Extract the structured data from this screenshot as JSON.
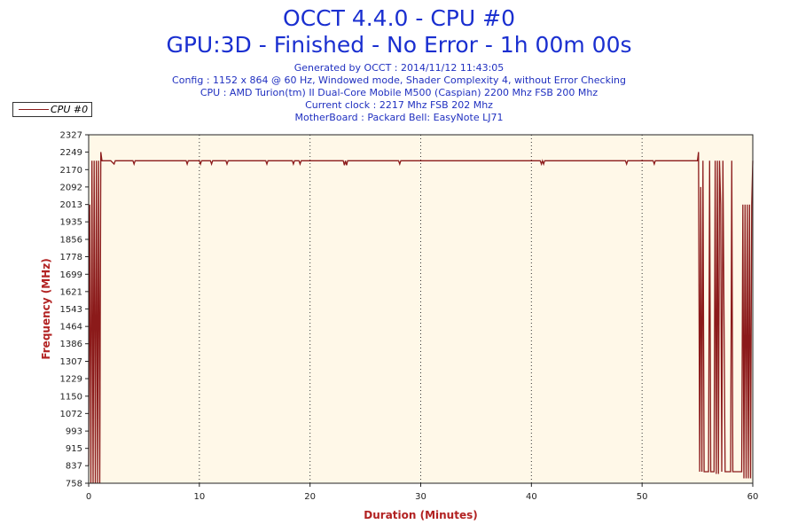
{
  "header": {
    "title_line1": "OCCT 4.4.0 - CPU #0",
    "title_line2": "GPU:3D - Finished - No Error - 1h 00m 00s",
    "info": [
      "Generated by OCCT : 2014/11/12 11:43:05",
      "Config : 1152 x 864 @ 60 Hz, Windowed mode, Shader Complexity 4, without Error Checking",
      "CPU : AMD Turion(tm) II Dual-Core Mobile M500 (Caspian) 2200 Mhz FSB 200 Mhz",
      "Current clock : 2217 Mhz FSB 202 Mhz",
      "MotherBoard : Packard Bell: EasyNote LJ71"
    ]
  },
  "colors": {
    "series": "#8b1a1a",
    "plot_background": "#fff8e8",
    "title": "#1a2fd0",
    "axis_title": "#b22222"
  },
  "chart_data": {
    "type": "line",
    "xlabel": "Duration (Minutes)",
    "ylabel": "Frequency (MHz)",
    "xlim": [
      0,
      60
    ],
    "ylim": [
      758,
      2327
    ],
    "x_ticks": [
      0,
      10,
      20,
      30,
      40,
      50,
      60
    ],
    "y_ticks": [
      758,
      837,
      915,
      993,
      1072,
      1150,
      1229,
      1307,
      1386,
      1464,
      1543,
      1621,
      1699,
      1778,
      1856,
      1935,
      2013,
      2092,
      2170,
      2249,
      2327
    ],
    "grid": "vertical-dotted",
    "legend": "top-left",
    "series": [
      {
        "name": "CPU #0",
        "x": [
          0,
          0.1,
          0.2,
          0.3,
          0.4,
          0.5,
          0.6,
          0.7,
          0.8,
          0.9,
          1.0,
          1.1,
          1.2,
          2.0,
          2.3,
          2.4,
          4.0,
          4.1,
          4.2,
          8.0,
          8.8,
          8.9,
          9.0,
          10.0,
          10.1,
          10.2,
          11.0,
          11.1,
          11.2,
          12.4,
          12.5,
          12.6,
          16.0,
          16.1,
          16.2,
          18.4,
          18.5,
          18.6,
          19.0,
          19.1,
          19.2,
          23.0,
          23.1,
          23.2,
          23.3,
          23.4,
          23.5,
          28.0,
          28.1,
          28.2,
          33.0,
          40.8,
          40.9,
          41.0,
          41.1,
          41.2,
          48.5,
          48.6,
          48.7,
          51.0,
          51.1,
          51.2,
          55.0,
          55.1,
          55.2,
          55.3,
          55.4,
          55.5,
          55.6,
          56.0,
          56.1,
          56.2,
          56.5,
          56.6,
          56.7,
          56.8,
          56.9,
          57.0,
          57.1,
          57.2,
          57.3,
          57.5,
          58.0,
          58.1,
          58.2,
          58.3,
          59.0,
          59.1,
          59.2,
          59.3,
          59.4,
          59.5,
          59.6,
          59.7,
          59.8,
          59.9,
          60.0
        ],
        "y": [
          837,
          2013,
          758,
          2210,
          758,
          2210,
          758,
          2210,
          758,
          2210,
          758,
          2249,
          2210,
          2210,
          2195,
          2210,
          2210,
          2195,
          2210,
          2210,
          2210,
          2195,
          2210,
          2210,
          2195,
          2210,
          2210,
          2195,
          2210,
          2210,
          2195,
          2210,
          2210,
          2195,
          2210,
          2210,
          2195,
          2210,
          2210,
          2195,
          2210,
          2210,
          2190,
          2210,
          2190,
          2210,
          2210,
          2210,
          2195,
          2210,
          2210,
          2210,
          2195,
          2210,
          2195,
          2210,
          2210,
          2195,
          2210,
          2210,
          2195,
          2210,
          2210,
          2249,
          810,
          2092,
          810,
          2210,
          810,
          810,
          2210,
          810,
          810,
          2210,
          800,
          2210,
          800,
          2210,
          2013,
          810,
          2210,
          810,
          810,
          2210,
          810,
          810,
          810,
          2013,
          780,
          2013,
          780,
          2013,
          780,
          2013,
          780,
          2013,
          2210
        ]
      }
    ]
  }
}
